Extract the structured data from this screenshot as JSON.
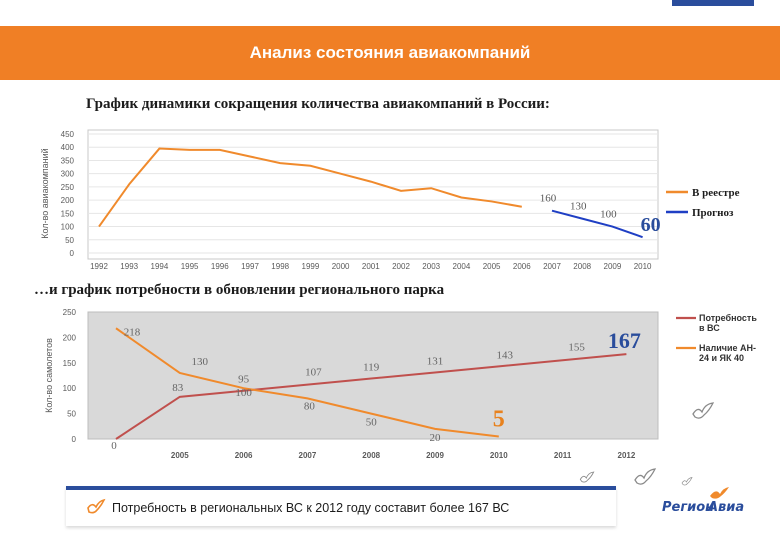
{
  "header": {
    "title": "Анализ состояния авиакомпаний"
  },
  "subtitles": {
    "first": "График динамики сокращения количества авиакомпаний в России:",
    "second": "…и  график потребности в обновлении регионального парка"
  },
  "footer": {
    "text": "Потребность в региональных ВС к 2012 году составит более 167 ВС"
  },
  "logo": {
    "part1": "Регион",
    "part2": "Авиа"
  },
  "colors": {
    "header": "#f07f25",
    "orange_line": "#f08a2c",
    "blue_line": "#1f3fc4",
    "red_line": "#c0504d",
    "plot_bg": "#d9d9d9",
    "label_text": "#5a5a5a",
    "accent_orange_text": "#e8821e",
    "accent_blue_text": "#2a4d9c"
  },
  "chart_data": [
    {
      "type": "line",
      "ylabel": "Кол-во авиакомпаний",
      "ylim": [
        0,
        450
      ],
      "yticks": [
        0,
        50,
        100,
        150,
        200,
        250,
        300,
        350,
        400,
        450
      ],
      "categories": [
        "1992",
        "1993",
        "1994",
        "1995",
        "1996",
        "1997",
        "1998",
        "1999",
        "2000",
        "2001",
        "2002",
        "2003",
        "2004",
        "2005",
        "2006",
        "2007",
        "2008",
        "2009",
        "2010"
      ],
      "grid": true,
      "legend_position": "right",
      "series": [
        {
          "name": "В реестре",
          "color": "#f08a2c",
          "x": [
            "1992",
            "1993",
            "1994",
            "1995",
            "1996",
            "1997",
            "1998",
            "1999",
            "2000",
            "2001",
            "2002",
            "2003",
            "2004",
            "2005",
            "2006"
          ],
          "values": [
            100,
            260,
            395,
            390,
            390,
            365,
            340,
            330,
            300,
            270,
            235,
            245,
            210,
            195,
            175
          ]
        },
        {
          "name": "Прогноз",
          "color": "#1f3fc4",
          "x": [
            "2007",
            "2008",
            "2009",
            "2010"
          ],
          "values": [
            160,
            130,
            100,
            60
          ],
          "labels": [
            "160",
            "130",
            "100",
            "60"
          ]
        }
      ]
    },
    {
      "type": "line",
      "ylabel": "Кол-во самолетов",
      "ylim": [
        0,
        250
      ],
      "yticks": [
        0,
        50,
        100,
        150,
        200,
        250
      ],
      "categories": [
        "2005",
        "2006",
        "2007",
        "2008",
        "2009",
        "2010",
        "2011",
        "2012"
      ],
      "grid": false,
      "legend_position": "right",
      "series": [
        {
          "name": "Потребность в ВС",
          "color": "#c0504d",
          "x": [
            2004,
            2005,
            2006,
            2007,
            2008,
            2009,
            2010,
            2011,
            2012
          ],
          "values": [
            0,
            83,
            95,
            107,
            119,
            131,
            143,
            155,
            167
          ],
          "labels": [
            "0",
            "83",
            "95",
            "107",
            "119",
            "131",
            "143",
            "155",
            "167"
          ]
        },
        {
          "name": "Наличие АН-24 и ЯК 40",
          "color": "#f08a2c",
          "x": [
            2004,
            2005,
            2006,
            2007,
            2008,
            2009,
            2010
          ],
          "values": [
            218,
            130,
            100,
            80,
            50,
            20,
            5
          ],
          "labels": [
            "218",
            "130",
            "100",
            "80",
            "50",
            "20",
            "5"
          ]
        }
      ]
    }
  ]
}
